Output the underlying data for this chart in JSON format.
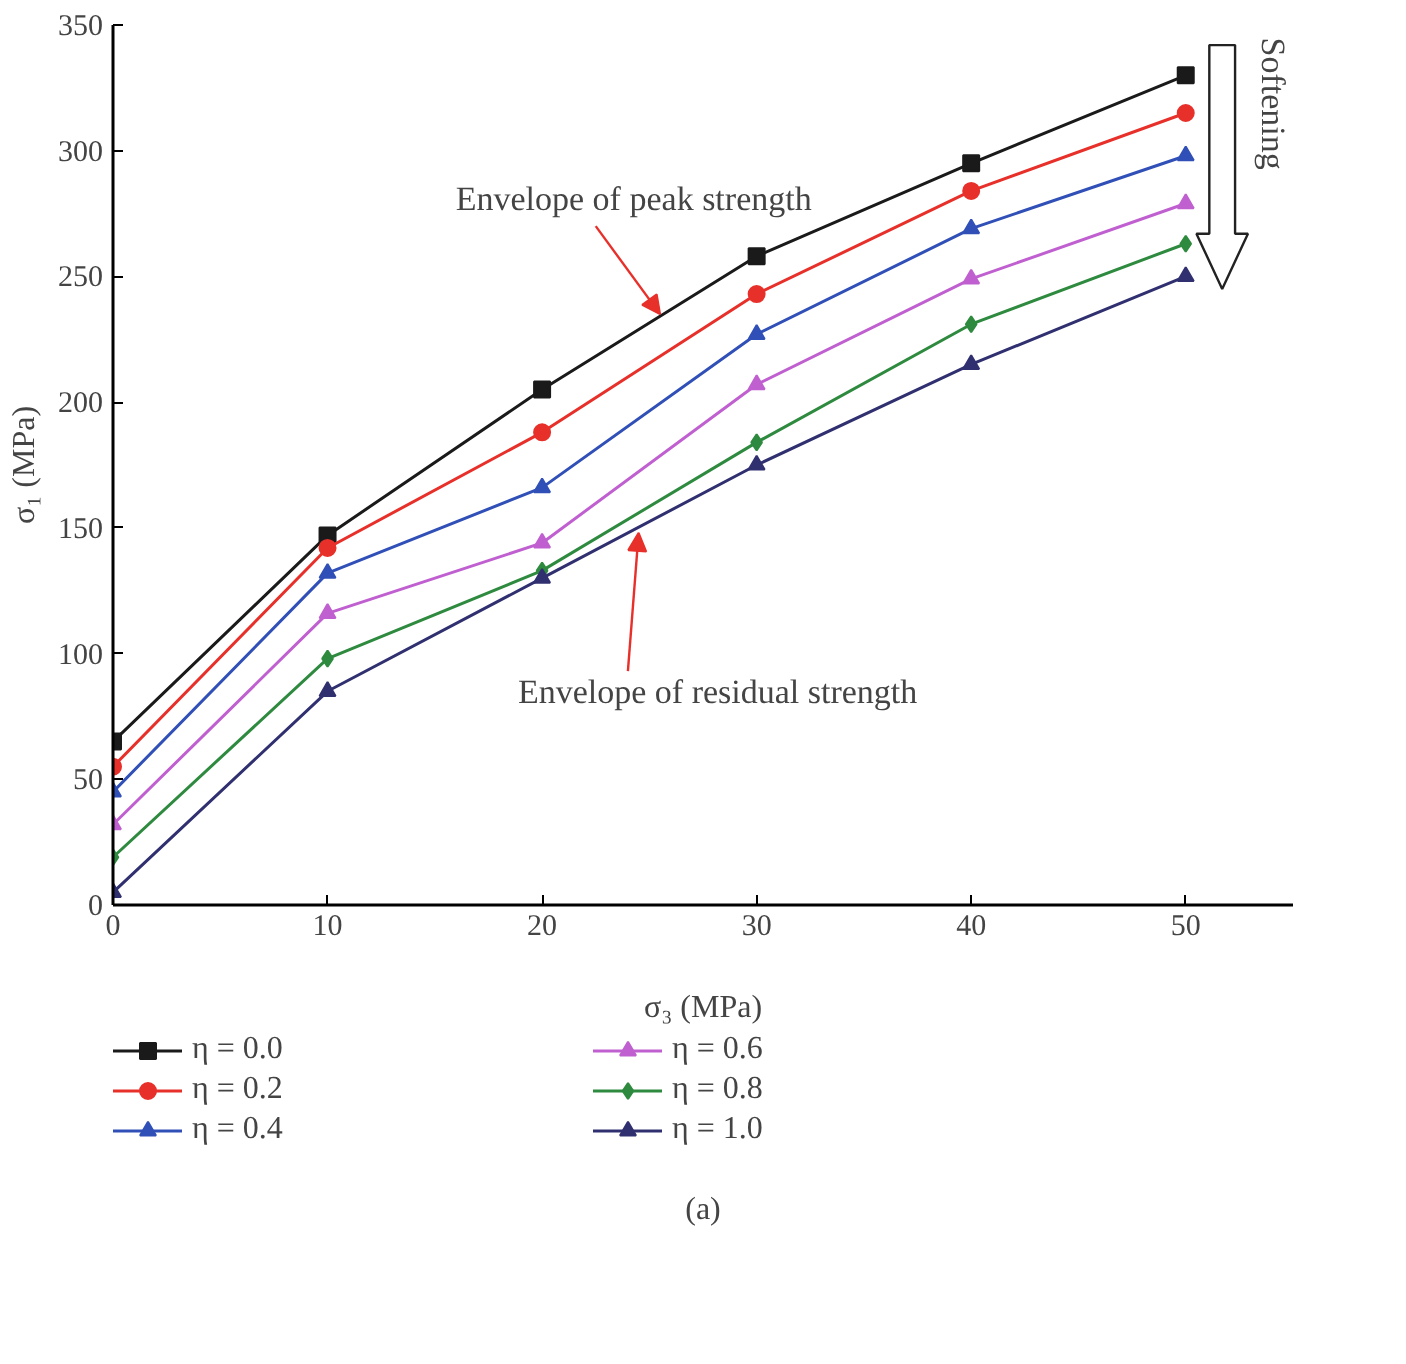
{
  "chart_data": {
    "type": "line",
    "xlabel": "σ₃ (MPa)",
    "ylabel": "σ₁ (MPa)",
    "x": [
      0,
      10,
      20,
      30,
      40,
      50
    ],
    "series": [
      {
        "name": "η = 0.0",
        "color": "#1a1a1a",
        "marker": "square",
        "values": [
          65,
          147,
          205,
          258,
          295,
          330
        ]
      },
      {
        "name": "η = 0.2",
        "color": "#e8302a",
        "marker": "circle",
        "values": [
          55,
          142,
          188,
          243,
          284,
          315
        ]
      },
      {
        "name": "η = 0.4",
        "color": "#3050b8",
        "marker": "triangle",
        "values": [
          45,
          132,
          166,
          227,
          269,
          298
        ]
      },
      {
        "name": "η = 0.6",
        "color": "#c060d0",
        "marker": "triangle",
        "values": [
          32,
          116,
          144,
          207,
          249,
          279
        ]
      },
      {
        "name": "η = 0.8",
        "color": "#2e8a3e",
        "marker": "diamond",
        "values": [
          19,
          98,
          133,
          184,
          231,
          263
        ]
      },
      {
        "name": "η = 1.0",
        "color": "#303070",
        "marker": "triangle",
        "values": [
          5,
          85,
          130,
          175,
          215,
          250
        ]
      }
    ],
    "xlim": [
      0,
      55
    ],
    "ylim": [
      0,
      350
    ],
    "xticks": [
      0,
      10,
      20,
      30,
      40,
      50
    ],
    "yticks": [
      0,
      50,
      100,
      150,
      200,
      250,
      300,
      350
    ],
    "grid": false,
    "legend": "bottom",
    "annotations": [
      {
        "text": "Envelope of peak strength",
        "x": 25.5,
        "y": 235
      },
      {
        "text": "Envelope of residual strength",
        "x": 24.5,
        "y": 148
      },
      "Softening",
      "(a)"
    ]
  }
}
